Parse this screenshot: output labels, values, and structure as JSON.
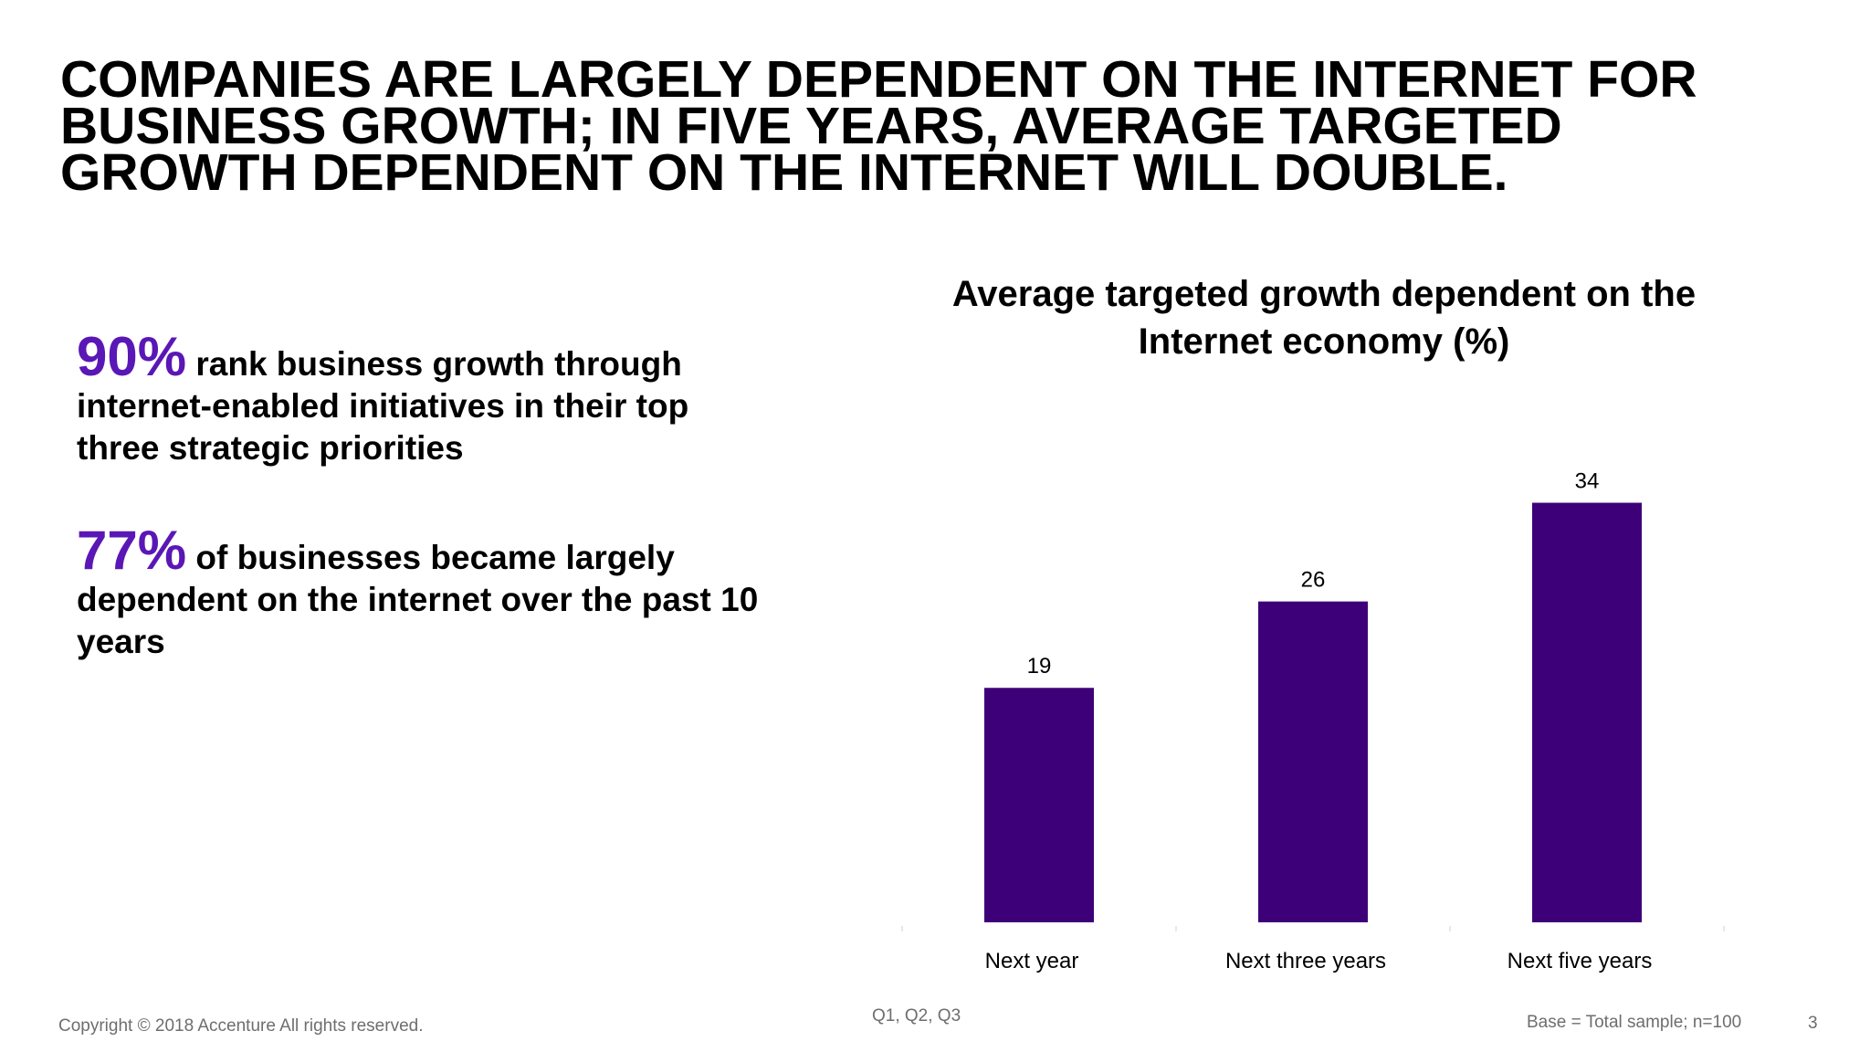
{
  "headline": {
    "line1": "COMPANIES ARE LARGELY DEPENDENT ON THE INTERNET FOR",
    "line2": "BUSINESS GROWTH; IN FIVE YEARS, AVERAGE TARGETED",
    "line3": "GROWTH DEPENDENT ON THE INTERNET WILL DOUBLE."
  },
  "stats": [
    {
      "value": "90%",
      "text": " rank business growth through internet-enabled initiatives in their top three strategic priorities"
    },
    {
      "value": "77%",
      "text": " of businesses became largely dependent on the internet over the past 10 years"
    }
  ],
  "colors": {
    "bar": "#3e0078",
    "accent": "#5a17b6"
  },
  "chart_data": {
    "type": "bar",
    "title": "Average targeted growth dependent on the Internet economy (%)",
    "categories": [
      "Next year",
      "Next three years",
      "Next five years"
    ],
    "values": [
      19,
      26,
      34
    ],
    "ylim": [
      0,
      37
    ],
    "grid": false,
    "legend": "none"
  },
  "footer": {
    "copyright": "Copyright © 2018 Accenture All rights reserved.",
    "question_ref": "Q1, Q2, Q3",
    "base": "Base = Total sample; n=100",
    "page_number": "3"
  }
}
